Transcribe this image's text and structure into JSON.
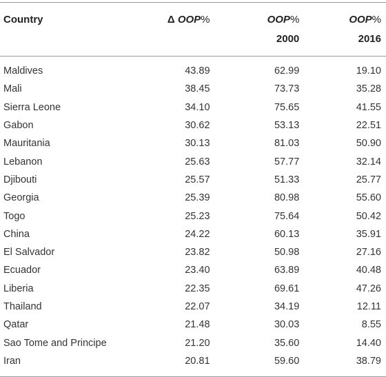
{
  "table": {
    "headers": [
      {
        "line1": [
          "Country"
        ]
      },
      {
        "line1": [
          "Δ ",
          "OOP",
          "%"
        ]
      },
      {
        "line1": [
          "OOP",
          "%"
        ],
        "line2": "2000"
      },
      {
        "line1": [
          "OOP",
          "%"
        ],
        "line2": "2016"
      }
    ],
    "rows": [
      [
        "Maldives",
        "43.89",
        "62.99",
        "19.10"
      ],
      [
        "Mali",
        "38.45",
        "73.73",
        "35.28"
      ],
      [
        "Sierra Leone",
        "34.10",
        "75.65",
        "41.55"
      ],
      [
        "Gabon",
        "30.62",
        "53.13",
        "22.51"
      ],
      [
        "Mauritania",
        "30.13",
        "81.03",
        "50.90"
      ],
      [
        "Lebanon",
        "25.63",
        "57.77",
        "32.14"
      ],
      [
        "Djibouti",
        "25.57",
        "51.33",
        "25.77"
      ],
      [
        "Georgia",
        "25.39",
        "80.98",
        "55.60"
      ],
      [
        "Togo",
        "25.23",
        "75.64",
        "50.42"
      ],
      [
        "China",
        "24.22",
        "60.13",
        "35.91"
      ],
      [
        "El Salvador",
        "23.82",
        "50.98",
        "27.16"
      ],
      [
        "Ecuador",
        "23.40",
        "63.89",
        "40.48"
      ],
      [
        "Liberia",
        "22.35",
        "69.61",
        "47.26"
      ],
      [
        "Thailand",
        "22.07",
        "34.19",
        "12.11"
      ],
      [
        "Qatar",
        "21.48",
        "30.03",
        "8.55"
      ],
      [
        "Sao Tome and Principe",
        "21.20",
        "35.60",
        "14.40"
      ],
      [
        "Iran",
        "20.81",
        "59.60",
        "38.79"
      ]
    ]
  }
}
